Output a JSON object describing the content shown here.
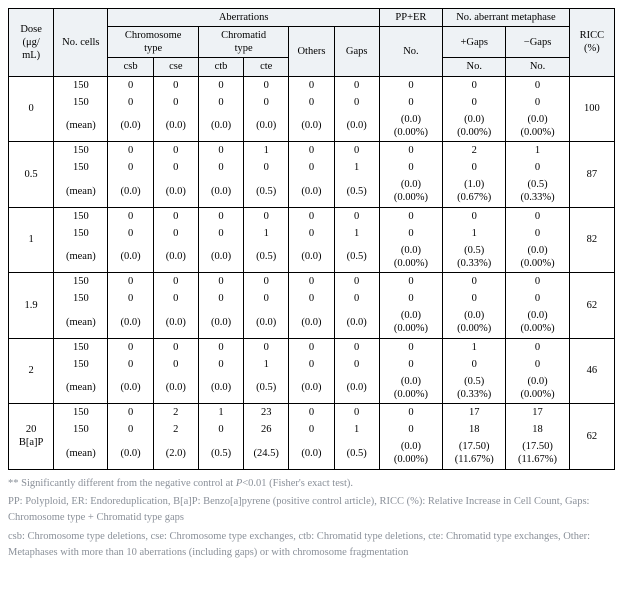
{
  "headers": {
    "dose": "Dose\n(μg/\nmL)",
    "nocells": "No. cells",
    "aberrations": "Aberrations",
    "chromosome": "Chromosome\ntype",
    "chromatid": "Chromatid\ntype",
    "others": "Others",
    "gaps": "Gaps",
    "pp_er": "PP+ER",
    "no_ab_meta": "No. aberrant metaphase",
    "no": "No.",
    "plusgaps": "+Gaps",
    "minusgaps": "−Gaps",
    "ricc": "RICC\n(%)",
    "csb": "csb",
    "cse": "cse",
    "ctb": "ctb",
    "cte": "cte"
  },
  "groups": [
    {
      "dose": "0",
      "ricc": "100",
      "rows": [
        {
          "nc": "150",
          "csb": "0",
          "cse": "0",
          "ctb": "0",
          "cte": "0",
          "oth": "0",
          "gap": "0",
          "pp": "0",
          "pg": "0",
          "mg": "0"
        },
        {
          "nc": "150",
          "csb": "0",
          "cse": "0",
          "ctb": "0",
          "cte": "0",
          "oth": "0",
          "gap": "0",
          "pp": "0",
          "pg": "0",
          "mg": "0"
        },
        {
          "nc": "(mean)",
          "csb": "(0.0)",
          "cse": "(0.0)",
          "ctb": "(0.0)",
          "cte": "(0.0)",
          "oth": "(0.0)",
          "gap": "(0.0)",
          "pp": "(0.0)\n(0.00%)",
          "pg": "(0.0)\n(0.00%)",
          "mg": "(0.0)\n(0.00%)"
        }
      ]
    },
    {
      "dose": "0.5",
      "ricc": "87",
      "rows": [
        {
          "nc": "150",
          "csb": "0",
          "cse": "0",
          "ctb": "0",
          "cte": "1",
          "oth": "0",
          "gap": "0",
          "pp": "0",
          "pg": "2",
          "mg": "1"
        },
        {
          "nc": "150",
          "csb": "0",
          "cse": "0",
          "ctb": "0",
          "cte": "0",
          "oth": "0",
          "gap": "1",
          "pp": "0",
          "pg": "0",
          "mg": "0"
        },
        {
          "nc": "(mean)",
          "csb": "(0.0)",
          "cse": "(0.0)",
          "ctb": "(0.0)",
          "cte": "(0.5)",
          "oth": "(0.0)",
          "gap": "(0.5)",
          "pp": "(0.0)\n(0.00%)",
          "pg": "(1.0)\n(0.67%)",
          "mg": "(0.5)\n(0.33%)"
        }
      ]
    },
    {
      "dose": "1",
      "ricc": "82",
      "rows": [
        {
          "nc": "150",
          "csb": "0",
          "cse": "0",
          "ctb": "0",
          "cte": "0",
          "oth": "0",
          "gap": "0",
          "pp": "0",
          "pg": "0",
          "mg": "0"
        },
        {
          "nc": "150",
          "csb": "0",
          "cse": "0",
          "ctb": "0",
          "cte": "1",
          "oth": "0",
          "gap": "1",
          "pp": "0",
          "pg": "1",
          "mg": "0"
        },
        {
          "nc": "(mean)",
          "csb": "(0.0)",
          "cse": "(0.0)",
          "ctb": "(0.0)",
          "cte": "(0.5)",
          "oth": "(0.0)",
          "gap": "(0.5)",
          "pp": "(0.0)\n(0.00%)",
          "pg": "(0.5)\n(0.33%)",
          "mg": "(0.0)\n(0.00%)"
        }
      ]
    },
    {
      "dose": "1.9",
      "ricc": "62",
      "rows": [
        {
          "nc": "150",
          "csb": "0",
          "cse": "0",
          "ctb": "0",
          "cte": "0",
          "oth": "0",
          "gap": "0",
          "pp": "0",
          "pg": "0",
          "mg": "0"
        },
        {
          "nc": "150",
          "csb": "0",
          "cse": "0",
          "ctb": "0",
          "cte": "0",
          "oth": "0",
          "gap": "0",
          "pp": "0",
          "pg": "0",
          "mg": "0"
        },
        {
          "nc": "(mean)",
          "csb": "(0.0)",
          "cse": "(0.0)",
          "ctb": "(0.0)",
          "cte": "(0.0)",
          "oth": "(0.0)",
          "gap": "(0.0)",
          "pp": "(0.0)\n(0.00%)",
          "pg": "(0.0)\n(0.00%)",
          "mg": "(0.0)\n(0.00%)"
        }
      ]
    },
    {
      "dose": "2",
      "ricc": "46",
      "rows": [
        {
          "nc": "150",
          "csb": "0",
          "cse": "0",
          "ctb": "0",
          "cte": "0",
          "oth": "0",
          "gap": "0",
          "pp": "0",
          "pg": "1",
          "mg": "0"
        },
        {
          "nc": "150",
          "csb": "0",
          "cse": "0",
          "ctb": "0",
          "cte": "1",
          "oth": "0",
          "gap": "0",
          "pp": "0",
          "pg": "0",
          "mg": "0"
        },
        {
          "nc": "(mean)",
          "csb": "(0.0)",
          "cse": "(0.0)",
          "ctb": "(0.0)",
          "cte": "(0.5)",
          "oth": "(0.0)",
          "gap": "(0.0)",
          "pp": "(0.0)\n(0.00%)",
          "pg": "(0.5)\n(0.33%)",
          "mg": "(0.0)\n(0.00%)"
        }
      ]
    },
    {
      "dose": "20\nB[a]P",
      "ricc": "62",
      "rows": [
        {
          "nc": "150",
          "csb": "0",
          "cse": "2",
          "ctb": "1",
          "cte": "23",
          "oth": "0",
          "gap": "0",
          "pp": "0",
          "pg": "17",
          "mg": "17"
        },
        {
          "nc": "150",
          "csb": "0",
          "cse": "2",
          "ctb": "0",
          "cte": "26",
          "oth": "0",
          "gap": "1",
          "pp": "0",
          "pg": "18",
          "mg": "18"
        },
        {
          "nc": "(mean)",
          "csb": "(0.0)",
          "cse": "(2.0)",
          "ctb": "(0.5)",
          "cte": "(24.5)",
          "oth": "(0.0)",
          "gap": "(0.5)",
          "pp": "(0.0)\n(0.00%)",
          "pg": "(17.50)\n(11.67%)",
          "mg": "(17.50)\n(11.67%)"
        }
      ]
    }
  ],
  "footnotes": {
    "f1_a": "** Significantly different from the negative control at ",
    "f1_b": "P",
    "f1_c": "<0.01 (Fisher's exact test).",
    "f2": "PP: Polyploid, ER: Endoreduplication, B[a]P: Benzo[a]pyrene (positive control article), RICC (%): Relative Increase in Cell Count, Gaps: Chromosome type + Chromatid type gaps",
    "f3": "csb: Chromosome type deletions, cse: Chromosome type exchanges, ctb: Chromatid type deletions, cte: Chromatid type exchanges, Other: Metaphases with more than 10 aberrations (including gaps) or with chromosome fragmentation"
  }
}
